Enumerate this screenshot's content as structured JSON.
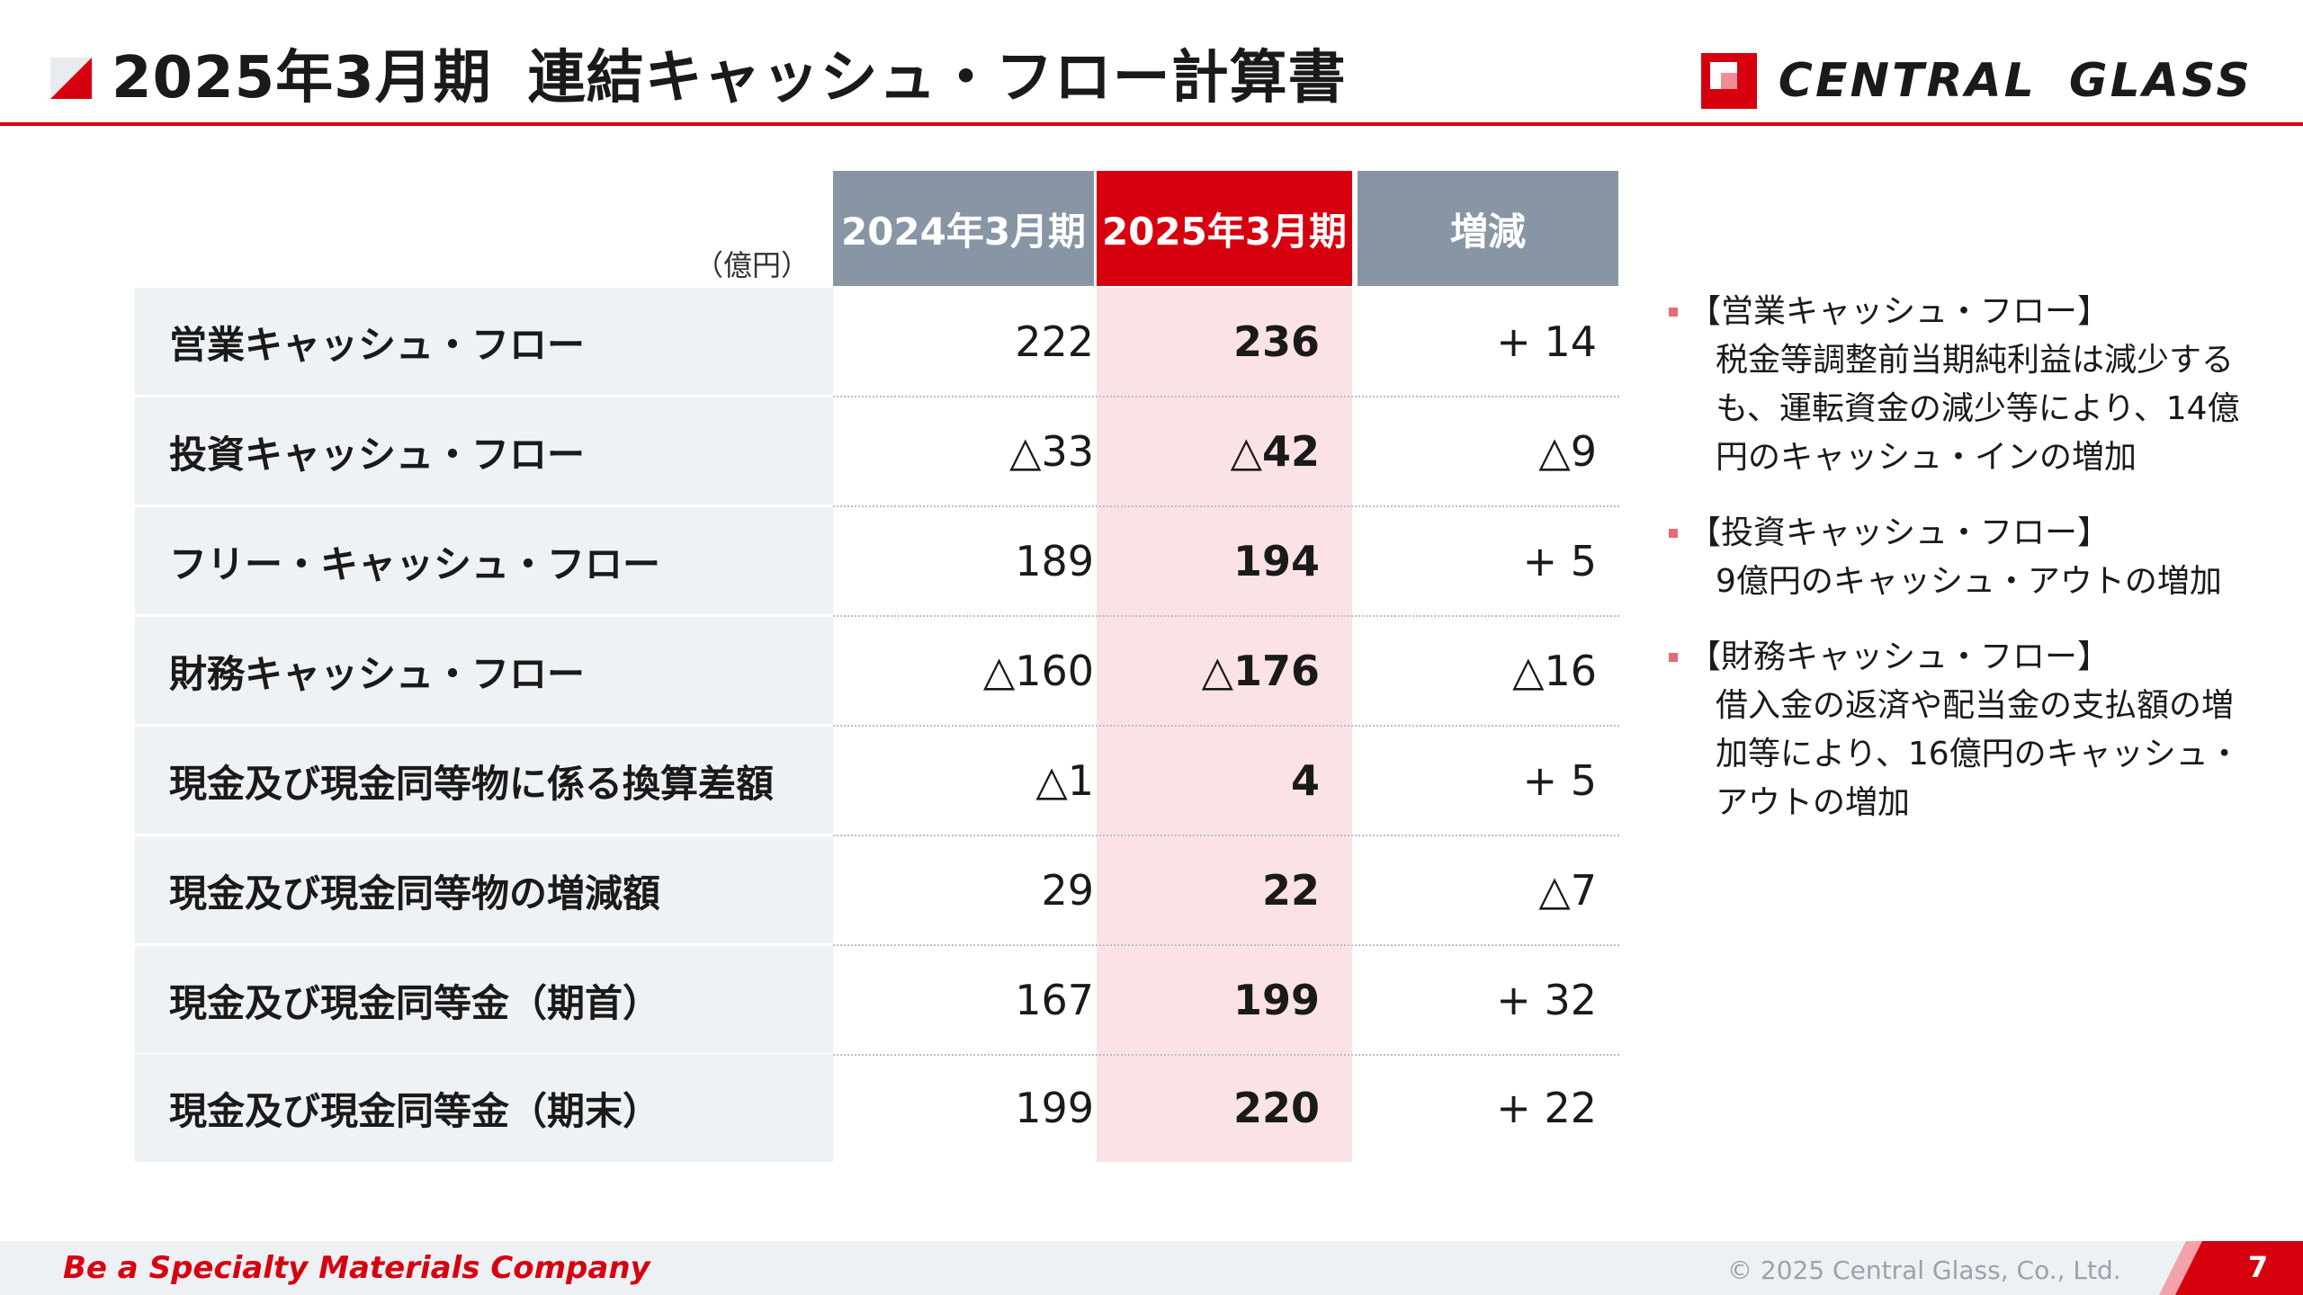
{
  "header": {
    "title_period": "2025年3月期",
    "title_main": "連結キャッシュ・フロー計算書",
    "logo_word1": "CENTRAL",
    "logo_word2": "GLASS"
  },
  "table": {
    "unit": "（億円）",
    "columns": [
      "2024年3月期",
      "2025年3月期",
      "増減"
    ],
    "rows": [
      {
        "label": "営業キャッシュ・フロー",
        "fy2024": "222",
        "fy2025": "236",
        "change": "+ 14"
      },
      {
        "label": "投資キャッシュ・フロー",
        "fy2024": "△33",
        "fy2025": "△42",
        "change": "△9"
      },
      {
        "label": "フリー・キャッシュ・フロー",
        "fy2024": "189",
        "fy2025": "194",
        "change": "+ 5"
      },
      {
        "label": "財務キャッシュ・フロー",
        "fy2024": "△160",
        "fy2025": "△176",
        "change": "△16"
      },
      {
        "label": "現金及び現金同等物に係る換算差額",
        "fy2024": "△1",
        "fy2025": "4",
        "change": "+ 5"
      },
      {
        "label": "現金及び現金同等物の増減額",
        "fy2024": "29",
        "fy2025": "22",
        "change": "△7"
      },
      {
        "label": "現金及び現金同等金（期首）",
        "fy2024": "167",
        "fy2025": "199",
        "change": "+ 32"
      },
      {
        "label": "現金及び現金同等金（期末）",
        "fy2024": "199",
        "fy2025": "220",
        "change": "+ 22"
      }
    ]
  },
  "notes": [
    {
      "heading": "【営業キャッシュ・フロー】",
      "body": "税金等調整前当期純利益は減少するも、運転資金の減少等により、14億円のキャッシュ・インの増加"
    },
    {
      "heading": "【投資キャッシュ・フロー】",
      "body": "9億円のキャッシュ・アウトの増加"
    },
    {
      "heading": "【財務キャッシュ・フロー】",
      "body": "借入金の返済や配当金の支払額の増加等により、16億円のキャッシュ・アウトの増加"
    }
  ],
  "footer": {
    "tagline": "Be a Specialty Materials Company",
    "copyright": "© 2025 Central Glass, Co., Ltd.",
    "page_number": "7"
  },
  "colors": {
    "brand_red": "#d7000f",
    "header_gray": "#8795a4",
    "highlight_pink": "#fbe3e5",
    "label_bg": "#eff2f5"
  }
}
